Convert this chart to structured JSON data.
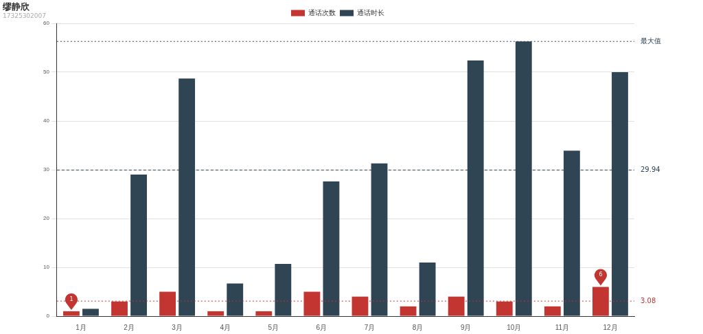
{
  "chart_data": {
    "type": "bar",
    "title": "缪静欣",
    "subtitle": "17325302007",
    "categories": [
      "1月",
      "2月",
      "3月",
      "4月",
      "5月",
      "6月",
      "7月",
      "8月",
      "9月",
      "10月",
      "11月",
      "12月"
    ],
    "series": [
      {
        "name": "通话次数",
        "color": "#c23531",
        "values": [
          1,
          3,
          5,
          1,
          1,
          5,
          4,
          2,
          4,
          3,
          2,
          6
        ]
      },
      {
        "name": "通话时长",
        "color": "#2f4554",
        "values": [
          1.5,
          29.0,
          48.7,
          6.7,
          10.7,
          27.6,
          31.3,
          11.0,
          52.4,
          56.3,
          33.9,
          50.0
        ]
      }
    ],
    "ylim": [
      0,
      60
    ],
    "yticks": [
      0,
      10,
      20,
      30,
      40,
      50,
      60
    ],
    "grid": "y",
    "legend": "top",
    "ref_lines": [
      {
        "axis": "y",
        "value": 56.3,
        "label": "最大值",
        "color": "#2f4554",
        "line_style": "dotted"
      },
      {
        "axis": "y",
        "value": 29.94,
        "label": "29.94",
        "color": "#2f4554",
        "line_style": "dashed"
      },
      {
        "axis": "y",
        "value": 3.08,
        "label": "3.08",
        "color": "#c23531",
        "line_style": "dotted"
      }
    ],
    "annotations": [
      {
        "text": "1",
        "x": "1月",
        "y": 1
      },
      {
        "text": "6",
        "x": "12月",
        "y": 6
      }
    ]
  }
}
